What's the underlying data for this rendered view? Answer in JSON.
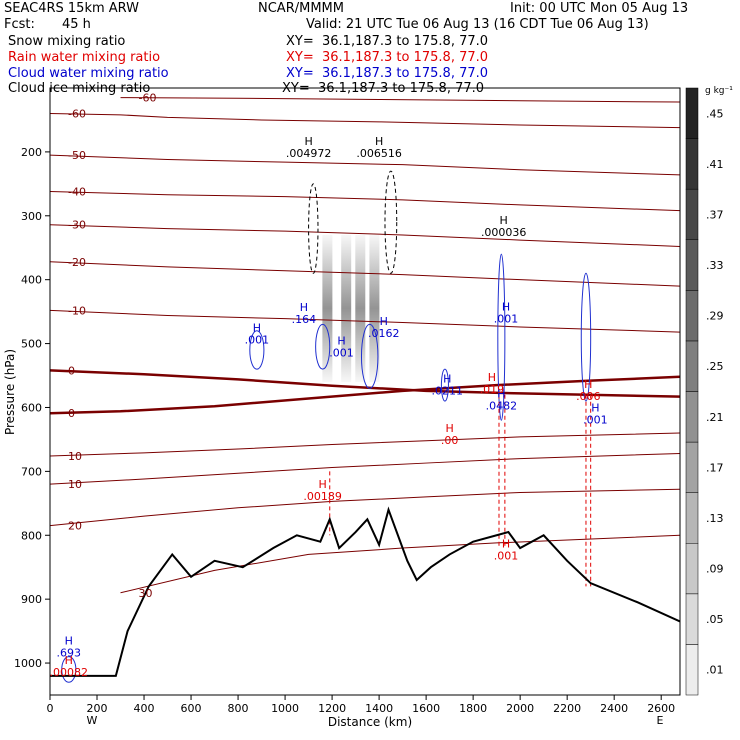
{
  "header": {
    "model": "SEAC4RS 15km ARW",
    "org": "NCAR/MMMM",
    "init": "Init: 00 UTC Mon 05 Aug 13",
    "fcst_label": "Fcst:",
    "fcst_value": "45 h",
    "valid": "Valid: 21 UTC Tue 06 Aug 13 (16 CDT Tue 06 Aug 13)",
    "fields": [
      {
        "name": "Snow mixing ratio",
        "xy": "XY=  36.1,187.3 to 175.8, 77.0",
        "color": "#000000"
      },
      {
        "name": "Rain water mixing ratio",
        "xy": "XY=  36.1,187.3 to 175.8, 77.0",
        "color": "#e00000"
      },
      {
        "name": "Cloud water mixing ratio",
        "xy": "XY=  36.1,187.3 to 175.8, 77.0",
        "color": "#0000cc"
      },
      {
        "name": "Cloud ice mixing ratio",
        "xy": "XY=  36.1,187.3 to 175.8, 77.0",
        "color": "#000000"
      }
    ]
  },
  "colorbar": {
    "unit": "g kg⁻¹",
    "ticks": [
      ".01",
      ".05",
      ".09",
      ".13",
      ".17",
      ".21",
      ".25",
      ".29",
      ".33",
      ".37",
      ".41",
      ".45"
    ]
  },
  "chart_data": {
    "type": "cross-section",
    "xlabel": "Distance (km)",
    "ylabel": "Pressure (hPa)",
    "xlim": [
      0,
      2680
    ],
    "ylim": [
      1050,
      100
    ],
    "x_ticks": [
      0,
      200,
      400,
      600,
      800,
      1000,
      1200,
      1400,
      1600,
      1800,
      2000,
      2200,
      2400,
      2600
    ],
    "y_ticks": [
      200,
      300,
      400,
      500,
      600,
      700,
      800,
      900,
      1000
    ],
    "x_end_labels": {
      "left": "W",
      "right": "E"
    },
    "temperature_contours": [
      {
        "label": "-60",
        "points": [
          [
            300,
            115
          ],
          [
            800,
            116
          ],
          [
            1400,
            118
          ],
          [
            2000,
            120
          ],
          [
            2680,
            122
          ]
        ]
      },
      {
        "label": "-60",
        "points": [
          [
            0,
            140
          ],
          [
            300,
            142
          ],
          [
            500,
            146
          ],
          [
            900,
            150
          ],
          [
            1400,
            153
          ],
          [
            2000,
            158
          ],
          [
            2680,
            162
          ]
        ]
      },
      {
        "label": "-50",
        "points": [
          [
            0,
            205
          ],
          [
            500,
            212
          ],
          [
            1000,
            216
          ],
          [
            1500,
            220
          ],
          [
            2000,
            228
          ],
          [
            2680,
            236
          ]
        ]
      },
      {
        "label": "-40",
        "points": [
          [
            0,
            262
          ],
          [
            500,
            267
          ],
          [
            1000,
            270
          ],
          [
            1500,
            275
          ],
          [
            2000,
            283
          ],
          [
            2680,
            292
          ]
        ]
      },
      {
        "label": "-30",
        "points": [
          [
            0,
            314
          ],
          [
            500,
            320
          ],
          [
            1000,
            324
          ],
          [
            1500,
            330
          ],
          [
            2000,
            338
          ],
          [
            2680,
            348
          ]
        ]
      },
      {
        "label": "-20",
        "points": [
          [
            0,
            372
          ],
          [
            500,
            380
          ],
          [
            1000,
            386
          ],
          [
            1500,
            392
          ],
          [
            2000,
            400
          ],
          [
            2680,
            410
          ]
        ]
      },
      {
        "label": "-10",
        "points": [
          [
            0,
            448
          ],
          [
            500,
            456
          ],
          [
            1000,
            461
          ],
          [
            1500,
            467
          ],
          [
            2000,
            474
          ],
          [
            2680,
            482
          ]
        ]
      },
      {
        "label": "0",
        "points": [
          [
            0,
            542
          ],
          [
            400,
            548
          ],
          [
            800,
            556
          ],
          [
            1200,
            566
          ],
          [
            1600,
            574
          ],
          [
            2000,
            578
          ],
          [
            2680,
            583
          ]
        ]
      },
      {
        "label": "0",
        "points": [
          [
            0,
            609
          ],
          [
            300,
            606
          ],
          [
            700,
            598
          ],
          [
            1100,
            586
          ],
          [
            1500,
            574
          ],
          [
            1900,
            565
          ],
          [
            2300,
            558
          ],
          [
            2680,
            552
          ]
        ]
      },
      {
        "label": "10",
        "points": [
          [
            0,
            676
          ],
          [
            400,
            671
          ],
          [
            800,
            665
          ],
          [
            1200,
            658
          ],
          [
            1600,
            652
          ],
          [
            2000,
            646
          ],
          [
            2680,
            640
          ]
        ]
      },
      {
        "label": "10",
        "points": [
          [
            0,
            720
          ],
          [
            400,
            712
          ],
          [
            800,
            703
          ],
          [
            1200,
            694
          ],
          [
            1600,
            687
          ],
          [
            2000,
            680
          ],
          [
            2680,
            672
          ]
        ]
      },
      {
        "label": "20",
        "points": [
          [
            0,
            785
          ],
          [
            400,
            770
          ],
          [
            800,
            757
          ],
          [
            1200,
            747
          ],
          [
            1600,
            740
          ],
          [
            2000,
            733
          ],
          [
            2680,
            728
          ]
        ]
      },
      {
        "label": "30",
        "points": [
          [
            300,
            890
          ],
          [
            700,
            855
          ],
          [
            1100,
            830
          ],
          [
            1500,
            820
          ],
          [
            1900,
            812
          ],
          [
            2680,
            800
          ]
        ]
      }
    ],
    "terrain": [
      [
        0,
        1020
      ],
      [
        280,
        1020
      ],
      [
        330,
        950
      ],
      [
        420,
        880
      ],
      [
        520,
        830
      ],
      [
        600,
        865
      ],
      [
        700,
        840
      ],
      [
        820,
        850
      ],
      [
        950,
        820
      ],
      [
        1050,
        800
      ],
      [
        1150,
        810
      ],
      [
        1190,
        775
      ],
      [
        1230,
        820
      ],
      [
        1300,
        795
      ],
      [
        1350,
        775
      ],
      [
        1400,
        815
      ],
      [
        1440,
        760
      ],
      [
        1480,
        800
      ],
      [
        1520,
        840
      ],
      [
        1560,
        870
      ],
      [
        1620,
        850
      ],
      [
        1700,
        830
      ],
      [
        1800,
        810
      ],
      [
        1900,
        800
      ],
      [
        1950,
        795
      ],
      [
        2000,
        820
      ],
      [
        2100,
        800
      ],
      [
        2200,
        840
      ],
      [
        2300,
        875
      ],
      [
        2500,
        905
      ],
      [
        2680,
        935
      ]
    ],
    "max_labels": [
      {
        "text": ".004972",
        "x": 1100,
        "p": 208,
        "color": "#000000"
      },
      {
        "text": ".006516",
        "x": 1400,
        "p": 208,
        "color": "#000000"
      },
      {
        "text": ".000036",
        "x": 1930,
        "p": 332,
        "color": "#000000"
      },
      {
        "text": ".164",
        "x": 1080,
        "p": 468,
        "color": "#0000cc"
      },
      {
        "text": ".001",
        "x": 880,
        "p": 500,
        "color": "#0000cc"
      },
      {
        "text": ".001",
        "x": 1240,
        "p": 520,
        "color": "#0000cc"
      },
      {
        "text": ".0162",
        "x": 1420,
        "p": 490,
        "color": "#0000cc"
      },
      {
        "text": ".0211",
        "x": 1690,
        "p": 580,
        "color": "#0000cc"
      },
      {
        "text": ".001",
        "x": 1940,
        "p": 467,
        "color": "#0000cc"
      },
      {
        "text": ".0482",
        "x": 1920,
        "p": 603,
        "color": "#0000cc"
      },
      {
        "text": ".001",
        "x": 2320,
        "p": 625,
        "color": "#0000cc"
      },
      {
        "text": ".693",
        "x": 80,
        "p": 990,
        "color": "#0000cc"
      },
      {
        "text": ".019",
        "x": 1880,
        "p": 577,
        "color": "#e00000"
      },
      {
        "text": ".00",
        "x": 1700,
        "p": 657,
        "color": "#e00000"
      },
      {
        "text": ".00189",
        "x": 1160,
        "p": 745,
        "color": "#e00000"
      },
      {
        "text": ".001",
        "x": 1940,
        "p": 838,
        "color": "#e00000"
      },
      {
        "text": ".006",
        "x": 2290,
        "p": 588,
        "color": "#e00000"
      },
      {
        "text": ".00082",
        "x": 80,
        "p": 1020,
        "color": "#e00000"
      }
    ]
  }
}
